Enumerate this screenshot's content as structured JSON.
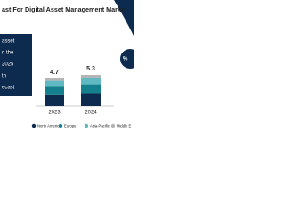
{
  "chart_data": {
    "type": "stacked-bar",
    "title": "ast For Digital Asset Management Market",
    "side_text": [
      "asset",
      "n the",
      "2025",
      "th",
      "ecast"
    ],
    "badge": "%",
    "categories": [
      "2023",
      "2024"
    ],
    "totals": [
      4.7,
      5.3
    ],
    "series": [
      {
        "name": "North America",
        "color": "#0d2b4e",
        "values": [
          2.0,
          2.2
        ]
      },
      {
        "name": "Europe",
        "color": "#15808d",
        "values": [
          1.3,
          1.5
        ]
      },
      {
        "name": "Asia-Pacific",
        "color": "#5fb8c2",
        "values": [
          1.0,
          1.1
        ]
      },
      {
        "name": "Middle E",
        "color": "#b5b5b5",
        "values": [
          0.4,
          0.5
        ]
      }
    ],
    "ylim": [
      0,
      10
    ]
  }
}
